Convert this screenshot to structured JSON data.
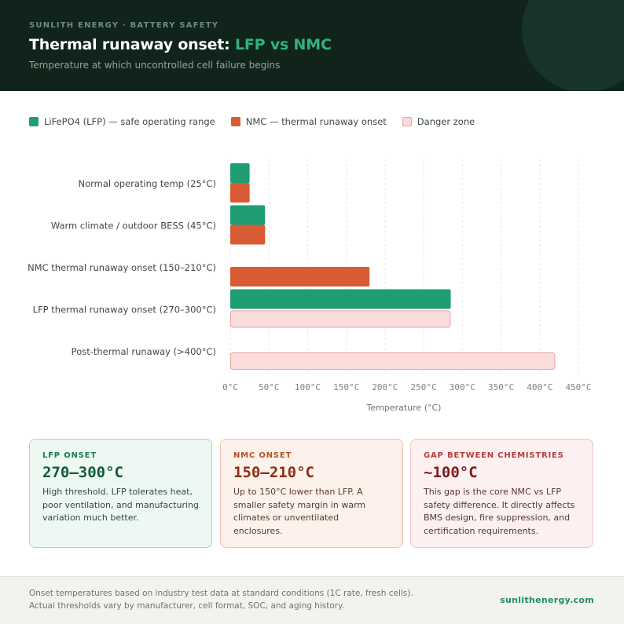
{
  "header": {
    "eyebrow": "SUNLITH ENERGY · BATTERY SAFETY",
    "title_main": "Thermal runaway onset: ",
    "title_accent": "LFP vs NMC",
    "subtitle": "Temperature at which uncontrolled cell failure begins"
  },
  "legend": [
    {
      "label": "LiFePO4 (LFP) — safe operating range",
      "color": "#1f9e73"
    },
    {
      "label": "NMC — thermal runaway onset",
      "color": "#d95b34"
    },
    {
      "label": "Danger zone",
      "color": "#f9dada"
    }
  ],
  "colors": {
    "lfp": "#1f9e73",
    "nmc": "#d95b34",
    "danger_fill": "#fbdcdc",
    "danger_stroke": "#eba3a3",
    "grid": "#e6e6e6"
  },
  "chart_data": {
    "type": "bar",
    "orientation": "horizontal",
    "categories": [
      "Normal operating temp (25°C)",
      "Warm climate / outdoor BESS (45°C)",
      "NMC thermal runaway onset (150–210°C)",
      "LFP thermal runaway onset (270–300°C)",
      "Post-thermal runaway (>400°C)"
    ],
    "bars": [
      {
        "series": "lfp",
        "value": 25,
        "slot": 0,
        "lane": 0
      },
      {
        "series": "nmc",
        "value": 25,
        "slot": 0,
        "lane": 1
      },
      {
        "series": "lfp",
        "value": 45,
        "slot": 1,
        "lane": 0
      },
      {
        "series": "nmc",
        "value": 45,
        "slot": 1,
        "lane": 1
      },
      {
        "series": "nmc",
        "value": 180,
        "slot": 2,
        "lane": 1
      },
      {
        "series": "lfp",
        "value": 285,
        "slot": 3,
        "lane": 0
      },
      {
        "series": "danger",
        "value": 285,
        "slot": 3,
        "lane": 1
      },
      {
        "series": "danger",
        "value": 420,
        "slot": 4,
        "lane": 1
      }
    ],
    "xlim": [
      0,
      450
    ],
    "xticks": [
      "0°C",
      "50°C",
      "100°C",
      "150°C",
      "200°C",
      "250°C",
      "300°C",
      "350°C",
      "400°C",
      "450°C"
    ],
    "xlabel": "Temperature (°C)",
    "grid": true,
    "legend_position": "top-left"
  },
  "cards": {
    "lfp": {
      "label": "LFP ONSET",
      "value": "270–300°C",
      "text": "High threshold. LFP tolerates heat, poor ventilation, and manufacturing variation much better."
    },
    "nmc": {
      "label": "NMC ONSET",
      "value": "150–210°C",
      "text": "Up to 150°C lower than LFP. A smaller safety margin in warm climates or unventilated enclosures."
    },
    "gap": {
      "label": "GAP BETWEEN CHEMISTRIES",
      "value": "~100°C",
      "text": "This gap is the core NMC vs LFP safety difference. It directly affects BMS design, fire suppression, and certification requirements."
    }
  },
  "footer": {
    "note_line1": "Onset temperatures based on industry test data at standard conditions (1C rate, fresh cells).",
    "note_line2": "Actual thresholds vary by manufacturer, cell format, SOC, and aging history.",
    "brand": "sunlithenergy.com"
  }
}
